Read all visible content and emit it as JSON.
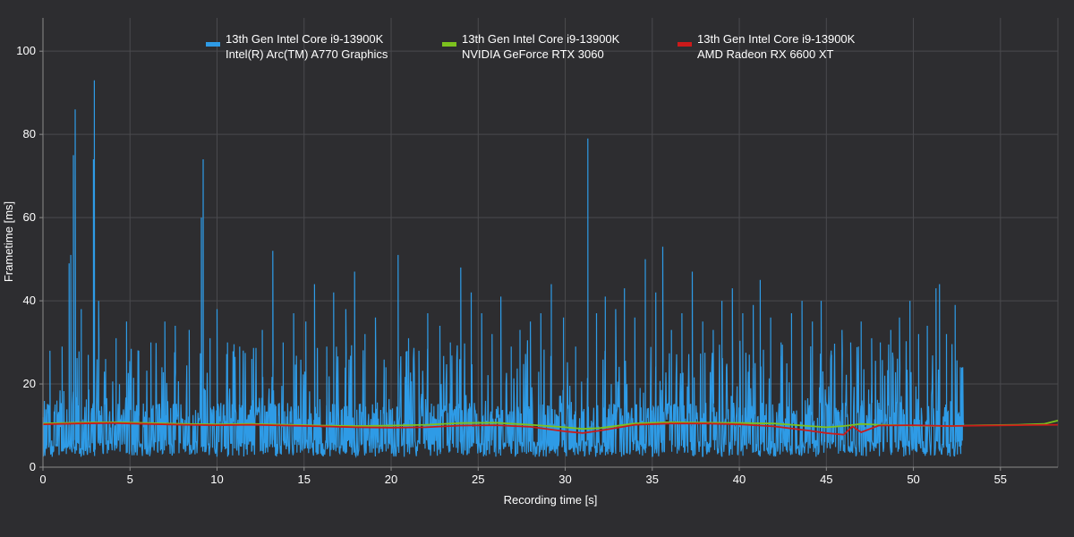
{
  "chart_data": {
    "type": "line",
    "xlabel": "Recording time [s]",
    "ylabel": "Frametime [ms]",
    "xlim": [
      0,
      58.3
    ],
    "ylim": [
      0,
      108
    ],
    "x_ticks": [
      0,
      5,
      10,
      15,
      20,
      25,
      30,
      35,
      40,
      45,
      50,
      55
    ],
    "y_ticks": [
      0,
      20,
      40,
      60,
      80,
      100
    ],
    "grid": true,
    "legend_position": "top",
    "colors": {
      "background": "#2d2d30",
      "grid": "#4a4a4e",
      "axis": "#8a8a8a",
      "text": "#ffffff"
    },
    "series": [
      {
        "name_line1": "13th Gen Intel Core i9-13900K",
        "name_line2": "Intel(R) Arc(TM) A770 Graphics",
        "color": "#2e9be6",
        "x_end": 52.9,
        "baseline": 8.5,
        "spikes": [
          {
            "x": 0.4,
            "y": 28
          },
          {
            "x": 0.8,
            "y": 16
          },
          {
            "x": 1.1,
            "y": 29
          },
          {
            "x": 1.5,
            "y": 49
          },
          {
            "x": 1.6,
            "y": 51
          },
          {
            "x": 1.75,
            "y": 75
          },
          {
            "x": 1.85,
            "y": 86
          },
          {
            "x": 2.2,
            "y": 38
          },
          {
            "x": 2.6,
            "y": 27
          },
          {
            "x": 2.9,
            "y": 74
          },
          {
            "x": 2.95,
            "y": 93
          },
          {
            "x": 3.2,
            "y": 40
          },
          {
            "x": 3.6,
            "y": 26
          },
          {
            "x": 4.2,
            "y": 31
          },
          {
            "x": 4.8,
            "y": 35
          },
          {
            "x": 5.5,
            "y": 28
          },
          {
            "x": 6.2,
            "y": 30
          },
          {
            "x": 7.0,
            "y": 35
          },
          {
            "x": 7.6,
            "y": 34
          },
          {
            "x": 8.4,
            "y": 33
          },
          {
            "x": 9.1,
            "y": 60
          },
          {
            "x": 9.2,
            "y": 74
          },
          {
            "x": 9.6,
            "y": 31
          },
          {
            "x": 10.0,
            "y": 38
          },
          {
            "x": 10.6,
            "y": 30
          },
          {
            "x": 11.3,
            "y": 29
          },
          {
            "x": 12.0,
            "y": 26
          },
          {
            "x": 12.6,
            "y": 33
          },
          {
            "x": 13.2,
            "y": 52
          },
          {
            "x": 13.8,
            "y": 30
          },
          {
            "x": 14.4,
            "y": 37
          },
          {
            "x": 15.1,
            "y": 35
          },
          {
            "x": 15.6,
            "y": 44
          },
          {
            "x": 16.3,
            "y": 29
          },
          {
            "x": 16.7,
            "y": 42
          },
          {
            "x": 17.4,
            "y": 38
          },
          {
            "x": 17.9,
            "y": 47
          },
          {
            "x": 18.5,
            "y": 32
          },
          {
            "x": 19.1,
            "y": 36
          },
          {
            "x": 19.7,
            "y": 24
          },
          {
            "x": 20.4,
            "y": 51
          },
          {
            "x": 21.0,
            "y": 31
          },
          {
            "x": 21.6,
            "y": 28
          },
          {
            "x": 22.1,
            "y": 37
          },
          {
            "x": 22.8,
            "y": 34
          },
          {
            "x": 23.4,
            "y": 30
          },
          {
            "x": 24.0,
            "y": 48
          },
          {
            "x": 24.6,
            "y": 42
          },
          {
            "x": 25.2,
            "y": 37
          },
          {
            "x": 25.8,
            "y": 32
          },
          {
            "x": 26.3,
            "y": 41
          },
          {
            "x": 26.9,
            "y": 29
          },
          {
            "x": 27.4,
            "y": 33
          },
          {
            "x": 28.0,
            "y": 35
          },
          {
            "x": 28.6,
            "y": 37
          },
          {
            "x": 29.2,
            "y": 44
          },
          {
            "x": 29.9,
            "y": 36
          },
          {
            "x": 30.6,
            "y": 29
          },
          {
            "x": 31.3,
            "y": 79
          },
          {
            "x": 31.8,
            "y": 37
          },
          {
            "x": 32.3,
            "y": 41
          },
          {
            "x": 32.9,
            "y": 38
          },
          {
            "x": 33.4,
            "y": 43
          },
          {
            "x": 34.0,
            "y": 36
          },
          {
            "x": 34.6,
            "y": 50
          },
          {
            "x": 35.2,
            "y": 42
          },
          {
            "x": 35.6,
            "y": 53
          },
          {
            "x": 36.1,
            "y": 33
          },
          {
            "x": 36.7,
            "y": 37
          },
          {
            "x": 37.3,
            "y": 47
          },
          {
            "x": 37.9,
            "y": 35
          },
          {
            "x": 38.5,
            "y": 33
          },
          {
            "x": 39.0,
            "y": 40
          },
          {
            "x": 39.6,
            "y": 43
          },
          {
            "x": 40.2,
            "y": 37
          },
          {
            "x": 40.8,
            "y": 39
          },
          {
            "x": 41.2,
            "y": 45
          },
          {
            "x": 41.8,
            "y": 36
          },
          {
            "x": 42.4,
            "y": 30
          },
          {
            "x": 43.0,
            "y": 37
          },
          {
            "x": 43.6,
            "y": 40
          },
          {
            "x": 44.2,
            "y": 35
          },
          {
            "x": 44.7,
            "y": 40
          },
          {
            "x": 45.3,
            "y": 27
          },
          {
            "x": 45.9,
            "y": 33
          },
          {
            "x": 46.4,
            "y": 30
          },
          {
            "x": 47.0,
            "y": 35
          },
          {
            "x": 47.6,
            "y": 31
          },
          {
            "x": 48.1,
            "y": 30
          },
          {
            "x": 48.7,
            "y": 33
          },
          {
            "x": 49.2,
            "y": 36
          },
          {
            "x": 49.8,
            "y": 40
          },
          {
            "x": 50.3,
            "y": 32
          },
          {
            "x": 50.8,
            "y": 34
          },
          {
            "x": 51.3,
            "y": 43
          },
          {
            "x": 51.5,
            "y": 44
          },
          {
            "x": 51.9,
            "y": 32
          },
          {
            "x": 52.4,
            "y": 39
          },
          {
            "x": 52.7,
            "y": 24
          }
        ]
      },
      {
        "name_line1": "13th Gen Intel Core i9-13900K",
        "name_line2": "NVIDIA GeForce RTX 3060",
        "color": "#7dc21e",
        "x_end": 58.3,
        "points": [
          [
            0,
            10.5
          ],
          [
            2,
            10.7
          ],
          [
            4,
            10.8
          ],
          [
            6,
            10.6
          ],
          [
            8,
            10.4
          ],
          [
            10,
            10.3
          ],
          [
            12,
            10.4
          ],
          [
            14,
            10.2
          ],
          [
            16,
            10.0
          ],
          [
            18,
            9.9
          ],
          [
            20,
            10.0
          ],
          [
            22,
            10.2
          ],
          [
            24,
            10.6
          ],
          [
            26,
            10.7
          ],
          [
            28,
            10.2
          ],
          [
            30,
            9.6
          ],
          [
            31,
            9.2
          ],
          [
            32,
            9.4
          ],
          [
            34,
            10.5
          ],
          [
            36,
            10.8
          ],
          [
            38,
            10.7
          ],
          [
            40,
            10.6
          ],
          [
            42,
            10.5
          ],
          [
            44,
            9.9
          ],
          [
            45,
            9.6
          ],
          [
            46,
            9.9
          ],
          [
            47,
            10.4
          ],
          [
            48,
            10.2
          ],
          [
            50,
            10.0
          ],
          [
            52,
            9.9
          ],
          [
            54,
            10.1
          ],
          [
            56,
            10.2
          ],
          [
            57.5,
            10.4
          ],
          [
            58.3,
            11.2
          ]
        ]
      },
      {
        "name_line1": "13th Gen Intel Core i9-13900K",
        "name_line2": "AMD Radeon RX 6600 XT",
        "color": "#cc1a1a",
        "x_end": 58.3,
        "points": [
          [
            0,
            10.3
          ],
          [
            2,
            10.5
          ],
          [
            4,
            10.6
          ],
          [
            6,
            10.4
          ],
          [
            8,
            10.2
          ],
          [
            10,
            10.1
          ],
          [
            12,
            10.2
          ],
          [
            14,
            10.0
          ],
          [
            16,
            9.8
          ],
          [
            18,
            9.6
          ],
          [
            20,
            9.5
          ],
          [
            22,
            9.6
          ],
          [
            24,
            10.0
          ],
          [
            26,
            10.1
          ],
          [
            28,
            9.7
          ],
          [
            30,
            8.6
          ],
          [
            31,
            8.2
          ],
          [
            32,
            8.8
          ],
          [
            34,
            10.2
          ],
          [
            36,
            10.5
          ],
          [
            38,
            10.5
          ],
          [
            40,
            10.3
          ],
          [
            42,
            9.8
          ],
          [
            44,
            8.8
          ],
          [
            45,
            8.2
          ],
          [
            46,
            7.8
          ],
          [
            46.5,
            9.8
          ],
          [
            47,
            8.4
          ],
          [
            48,
            10.0
          ],
          [
            50,
            10.1
          ],
          [
            52,
            9.9
          ],
          [
            54,
            10.0
          ],
          [
            56,
            10.1
          ],
          [
            58.3,
            10.2
          ]
        ]
      }
    ]
  }
}
